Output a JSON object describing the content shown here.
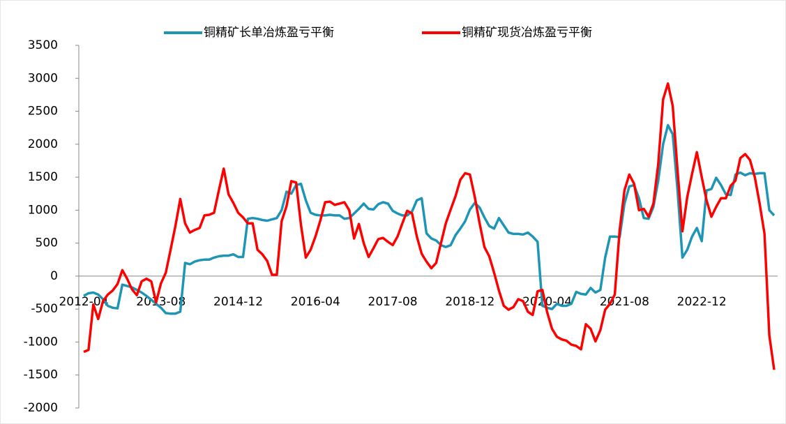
{
  "chart_data": {
    "type": "line",
    "categories": [
      "2012-04",
      null,
      null,
      null,
      null,
      null,
      null,
      null,
      null,
      null,
      null,
      null,
      null,
      null,
      null,
      null,
      "2013-08",
      null,
      null,
      null,
      null,
      null,
      null,
      null,
      null,
      null,
      null,
      null,
      null,
      null,
      null,
      null,
      "2014-12",
      null,
      null,
      null,
      null,
      null,
      null,
      null,
      null,
      null,
      null,
      null,
      null,
      null,
      null,
      null,
      "2016-04",
      null,
      null,
      null,
      null,
      null,
      null,
      null,
      null,
      null,
      null,
      null,
      null,
      null,
      null,
      null,
      "2017-08",
      null,
      null,
      null,
      null,
      null,
      null,
      null,
      null,
      null,
      null,
      null,
      null,
      null,
      null,
      null,
      "2018-12",
      null,
      null,
      null,
      null,
      null,
      null,
      null,
      null,
      null,
      null,
      null,
      null,
      null,
      null,
      null,
      "2020-04",
      null,
      null,
      null,
      null,
      null,
      null,
      null,
      null,
      null,
      null,
      null,
      null,
      null,
      null,
      null,
      "2021-08",
      null,
      null,
      null,
      null,
      null,
      null,
      null,
      null,
      null,
      null,
      null,
      null,
      null,
      null,
      null,
      "2022-12",
      null,
      null,
      null,
      null,
      null,
      null,
      null,
      null,
      null,
      null,
      null,
      null,
      null,
      null,
      null
    ],
    "series": [
      {
        "name": "铜精矿长单冶炼盈亏平衡",
        "color": "#1f95b6",
        "values": [
          -300,
          -260,
          -250,
          -280,
          -350,
          -450,
          -480,
          -490,
          -130,
          -150,
          -170,
          -210,
          -250,
          -300,
          -360,
          -420,
          -480,
          -560,
          -570,
          -570,
          -540,
          200,
          180,
          220,
          240,
          250,
          250,
          280,
          300,
          310,
          310,
          330,
          290,
          290,
          870,
          880,
          870,
          850,
          840,
          860,
          880,
          1000,
          1280,
          1250,
          1380,
          1400,
          1150,
          960,
          930,
          920,
          920,
          930,
          920,
          920,
          870,
          880,
          950,
          1020,
          1100,
          1020,
          1010,
          1090,
          1120,
          1100,
          990,
          950,
          920,
          920,
          980,
          1150,
          1180,
          650,
          570,
          540,
          470,
          440,
          470,
          620,
          720,
          830,
          1010,
          1110,
          1040,
          890,
          760,
          720,
          880,
          770,
          660,
          640,
          640,
          630,
          660,
          600,
          520,
          -450,
          -480,
          -500,
          -420,
          -450,
          -450,
          -420,
          -240,
          -270,
          -280,
          -180,
          -250,
          -210,
          280,
          600,
          600,
          590,
          1100,
          1360,
          1380,
          1180,
          880,
          870,
          1050,
          1450,
          2000,
          2290,
          2150,
          1300,
          280,
          400,
          600,
          730,
          530,
          1300,
          1320,
          1490,
          1380,
          1240,
          1230,
          1540,
          1570,
          1530,
          1560,
          1550,
          1560,
          1560,
          1000,
          920
        ]
      },
      {
        "name": "铜精矿现货冶炼盈亏平衡",
        "color": "#ff0000",
        "values": [
          -1150,
          -1120,
          -430,
          -650,
          -380,
          -280,
          -220,
          -120,
          90,
          -40,
          -200,
          -290,
          -80,
          -40,
          -80,
          -400,
          -110,
          50,
          400,
          760,
          1170,
          800,
          660,
          700,
          730,
          920,
          930,
          960,
          1300,
          1630,
          1240,
          1110,
          960,
          890,
          800,
          800,
          400,
          330,
          230,
          20,
          20,
          830,
          1060,
          1440,
          1420,
          780,
          280,
          400,
          600,
          840,
          1120,
          1130,
          1080,
          1100,
          1120,
          1000,
          570,
          790,
          500,
          290,
          420,
          560,
          580,
          520,
          470,
          600,
          800,
          990,
          950,
          600,
          340,
          220,
          120,
          200,
          500,
          800,
          1010,
          1210,
          1460,
          1560,
          1540,
          1200,
          800,
          440,
          300,
          50,
          -220,
          -450,
          -510,
          -470,
          -350,
          -380,
          -540,
          -590,
          -230,
          -210,
          -550,
          -800,
          -920,
          -960,
          -980,
          -1040,
          -1060,
          -1110,
          -730,
          -800,
          -990,
          -820,
          -510,
          -420,
          -280,
          700,
          1300,
          1540,
          1400,
          1000,
          1020,
          900,
          1100,
          1700,
          2680,
          2920,
          2580,
          1600,
          680,
          1200,
          1550,
          1880,
          1500,
          1150,
          900,
          1050,
          1180,
          1180,
          1370,
          1450,
          1790,
          1850,
          1760,
          1500,
          1100,
          640,
          -900,
          -1420
        ]
      }
    ],
    "ylim": [
      -2000,
      3500
    ],
    "yticks": [
      3500,
      3000,
      2500,
      2000,
      1500,
      1000,
      500,
      0,
      -500,
      -1000,
      -1500,
      -2000
    ]
  }
}
